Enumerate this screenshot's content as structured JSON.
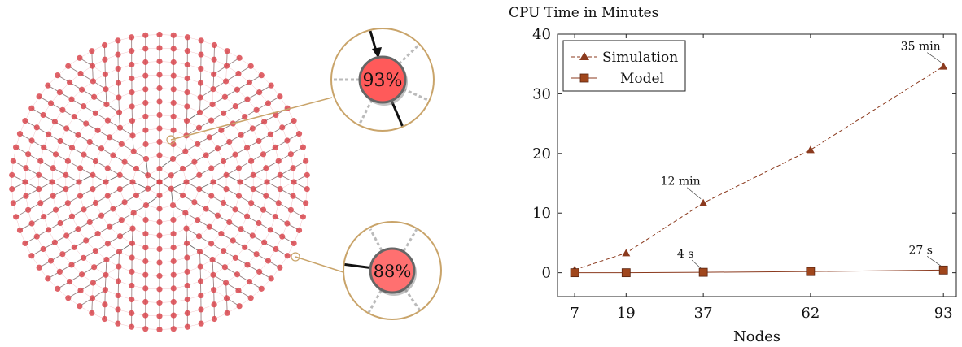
{
  "network": {
    "zoom_callouts": [
      {
        "label": "93%",
        "fill": "#ff5a5a"
      },
      {
        "label": "88%",
        "fill": "#ff7070"
      }
    ],
    "colors": {
      "node": "#d9484f",
      "edge": "#333333",
      "callout_ring": "#c9a46a"
    }
  },
  "chart_data": {
    "type": "line",
    "title": "CPU Time in Minutes",
    "xlabel": "Nodes",
    "ylabel": "",
    "x": [
      7,
      19,
      37,
      62,
      93
    ],
    "xticks": [
      7,
      19,
      37,
      62,
      93
    ],
    "yticks": [
      0,
      10,
      20,
      30,
      40
    ],
    "xlim": [
      3,
      96
    ],
    "ylim": [
      -4,
      40
    ],
    "grid": false,
    "legend_position": "top-left",
    "series": [
      {
        "name": "Simulation",
        "values": [
          0.5,
          3.3,
          11.7,
          20.6,
          34.6
        ],
        "marker": "triangle",
        "line": "dashed",
        "color": "#8b3a1e"
      },
      {
        "name": "Model",
        "values": [
          0.0,
          0.0,
          0.07,
          0.2,
          0.45
        ],
        "marker": "square",
        "line": "solid",
        "color": "#8b3a1e"
      }
    ],
    "annotations": [
      {
        "text": "12 min",
        "x": 37,
        "y": 11.7
      },
      {
        "text": "35 min",
        "x": 93,
        "y": 34.6
      },
      {
        "text": "4 s",
        "x": 37,
        "y": 0.07
      },
      {
        "text": "27 s",
        "x": 93,
        "y": 0.45
      }
    ]
  }
}
